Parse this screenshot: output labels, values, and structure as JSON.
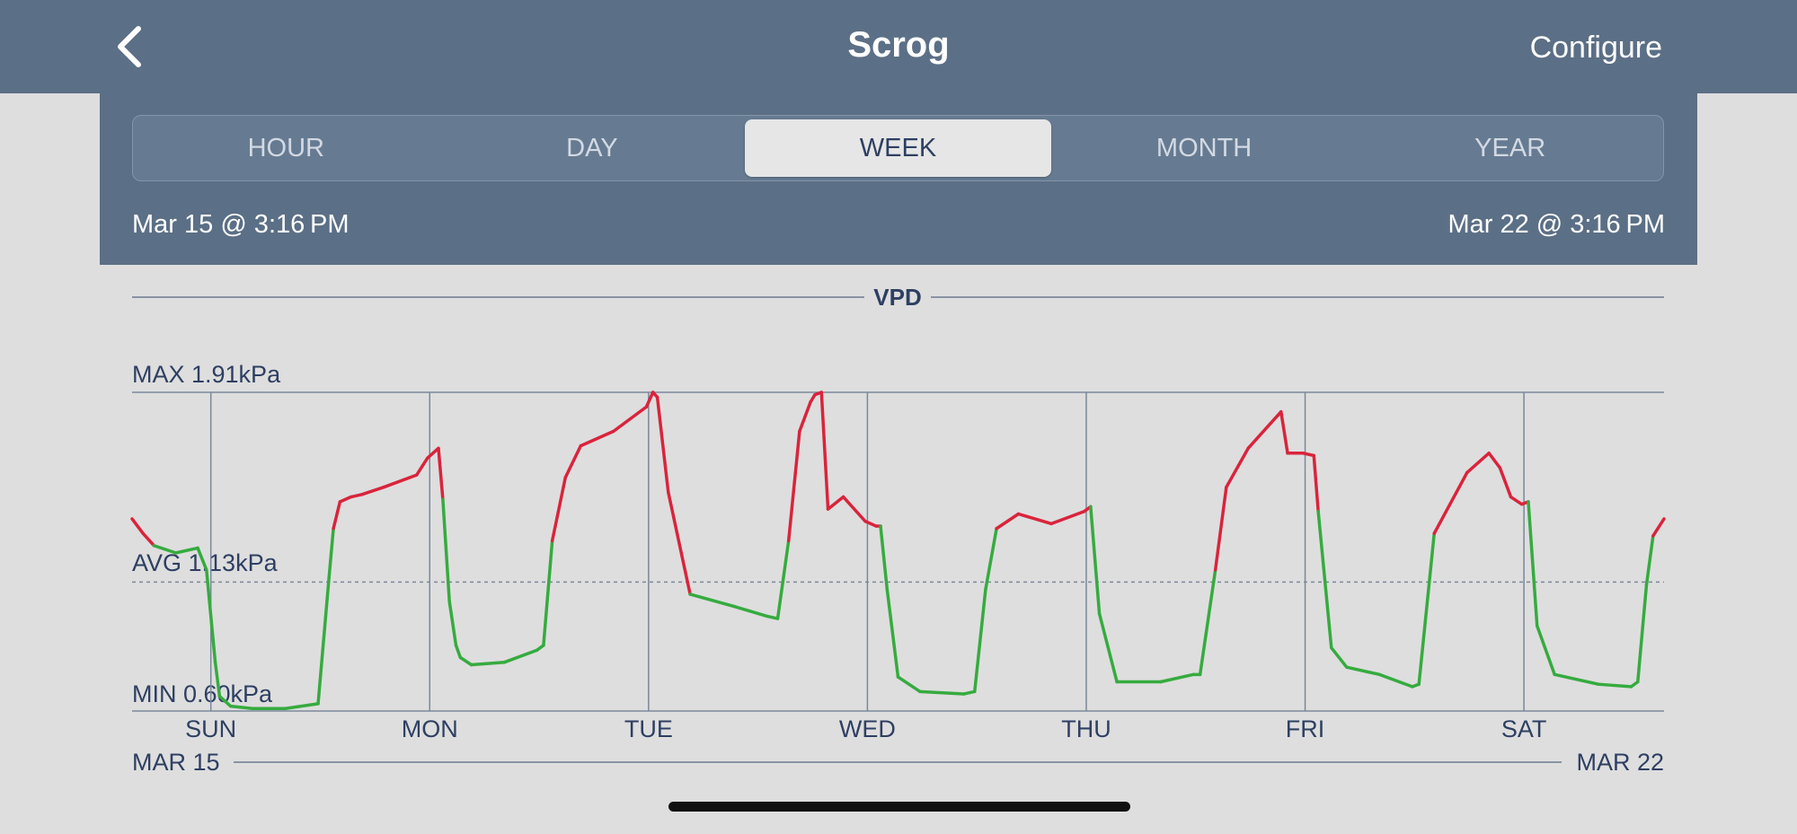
{
  "nav": {
    "title": "Scrog",
    "configure_label": "Configure",
    "back_icon": "chevron-left-icon"
  },
  "tabs": [
    {
      "label": "HOUR",
      "active": false
    },
    {
      "label": "DAY",
      "active": false
    },
    {
      "label": "WEEK",
      "active": true
    },
    {
      "label": "MONTH",
      "active": false
    },
    {
      "label": "YEAR",
      "active": false
    }
  ],
  "range": {
    "start": "Mar 15 @ 3:16 PM",
    "end": "Mar 22 @ 3:16 PM"
  },
  "colors": {
    "header": "#5b6f86",
    "high": "#d9243c",
    "normal": "#36ab3f",
    "axis_text": "#2e3f62"
  },
  "chart_data": {
    "type": "line",
    "title": "VPD",
    "max_label": "MAX 1.91kPa",
    "avg_label": "AVG 1.13kPa",
    "min_label": "MIN 0.60kPa",
    "ylim": [
      0.6,
      1.91
    ],
    "avg": 1.13,
    "threshold": 1.28,
    "x_unit": "days since Mar 15 @ 3:16 PM",
    "xlim": [
      0,
      7
    ],
    "day_labels": [
      "SUN",
      "MON",
      "TUE",
      "WED",
      "THU",
      "FRI",
      "SAT"
    ],
    "day_positions": [
      0.36,
      1.36,
      2.36,
      3.36,
      4.36,
      5.36,
      6.36
    ],
    "date_start": "MAR 15",
    "date_end": "MAR 22",
    "series": [
      {
        "name": "VPD",
        "x": [
          0,
          0.05,
          0.1,
          0.2,
          0.3,
          0.34,
          0.38,
          0.4,
          0.45,
          0.55,
          0.7,
          0.85,
          0.9,
          0.92,
          0.95,
          1.0,
          1.05,
          1.15,
          1.3,
          1.35,
          1.4,
          1.42,
          1.45,
          1.48,
          1.5,
          1.55,
          1.7,
          1.85,
          1.88,
          1.92,
          1.98,
          2.05,
          2.2,
          2.35,
          2.38,
          2.4,
          2.45,
          2.55,
          2.75,
          2.9,
          2.95,
          3.0,
          3.05,
          3.1,
          3.12,
          3.15,
          3.18,
          3.25,
          3.35,
          3.4,
          3.42,
          3.45,
          3.5,
          3.6,
          3.8,
          3.85,
          3.9,
          3.95,
          4.05,
          4.2,
          4.35,
          4.38,
          4.42,
          4.5,
          4.7,
          4.85,
          4.88,
          4.95,
          5.0,
          5.1,
          5.2,
          5.25,
          5.28,
          5.35,
          5.4,
          5.42,
          5.48,
          5.55,
          5.7,
          5.85,
          5.88,
          5.95,
          6.1,
          6.2,
          6.25,
          6.3,
          6.35,
          6.38,
          6.42,
          6.5,
          6.7,
          6.85,
          6.88,
          6.92,
          6.95,
          7.0
        ],
        "y": [
          1.39,
          1.33,
          1.28,
          1.25,
          1.27,
          1.18,
          0.8,
          0.66,
          0.62,
          0.61,
          0.61,
          0.63,
          1.15,
          1.35,
          1.46,
          1.48,
          1.49,
          1.52,
          1.57,
          1.64,
          1.68,
          1.47,
          1.05,
          0.87,
          0.82,
          0.79,
          0.8,
          0.85,
          0.87,
          1.3,
          1.56,
          1.69,
          1.75,
          1.85,
          1.91,
          1.89,
          1.5,
          1.08,
          1.03,
          0.99,
          0.98,
          1.3,
          1.75,
          1.87,
          1.9,
          1.91,
          1.43,
          1.48,
          1.38,
          1.36,
          1.36,
          1.1,
          0.74,
          0.68,
          0.67,
          0.68,
          1.1,
          1.35,
          1.41,
          1.37,
          1.42,
          1.44,
          1.0,
          0.72,
          0.72,
          0.75,
          0.75,
          1.18,
          1.52,
          1.68,
          1.78,
          1.83,
          1.66,
          1.66,
          1.65,
          1.42,
          0.86,
          0.78,
          0.75,
          0.7,
          0.71,
          1.33,
          1.58,
          1.66,
          1.6,
          1.48,
          1.45,
          1.46,
          0.95,
          0.75,
          0.71,
          0.7,
          0.72,
          1.12,
          1.32,
          1.39
        ]
      }
    ]
  }
}
